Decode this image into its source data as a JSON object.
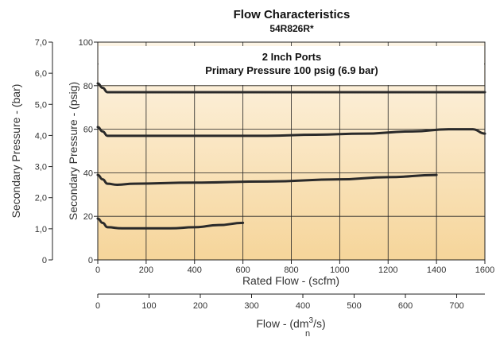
{
  "chart_data": {
    "type": "line",
    "title": "Flow Characteristics",
    "subtitle": "54R826R*",
    "annotation": [
      "2 Inch Ports",
      "Primary Pressure 100 psig (6.9 bar)"
    ],
    "xlabel": "Rated Flow - (scfm)",
    "ylabel": "Secondary Pressure - (psig)",
    "xlim": [
      0,
      1600
    ],
    "ylim": [
      0,
      100
    ],
    "x_ticks": [
      "0",
      "200",
      "400",
      "600",
      "800",
      "1000",
      "1200",
      "1400",
      "1600"
    ],
    "y_ticks": [
      "0",
      "20",
      "40",
      "60",
      "80",
      "100"
    ],
    "secondary_y": {
      "label": "Secondary Pressure - (bar)",
      "lim": [
        0,
        7
      ],
      "ticks": [
        "0",
        "1,0",
        "2,0",
        "3,0",
        "4,0",
        "5,0",
        "6,0",
        "7,0"
      ]
    },
    "secondary_x": {
      "label_main": "Flow - (dm",
      "label_sup": "3",
      "label_end": "/s)",
      "label_sub": "n",
      "lim": [
        0,
        755
      ],
      "ticks": [
        "0",
        "100",
        "200",
        "300",
        "400",
        "500",
        "600",
        "700"
      ]
    },
    "grid": true,
    "colors": {
      "line": "#2a2a2a",
      "band_top": "#fdf5e6",
      "band_bottom": "#f6d59a"
    },
    "series": [
      {
        "x": [
          0,
          20,
          40,
          100,
          400,
          800,
          1200,
          1600
        ],
        "y": [
          81,
          79,
          77,
          77,
          77,
          77,
          77,
          77
        ]
      },
      {
        "x": [
          0,
          20,
          40,
          100,
          400,
          700,
          900,
          1100,
          1300,
          1450,
          1550,
          1600
        ],
        "y": [
          61,
          59,
          57,
          57,
          57,
          57,
          57.5,
          58,
          59,
          60,
          60,
          58
        ]
      },
      {
        "x": [
          0,
          20,
          40,
          80,
          150,
          400,
          700,
          1000,
          1200,
          1400
        ],
        "y": [
          39,
          37,
          35,
          34.5,
          35,
          35.5,
          36,
          37,
          38,
          39
        ]
      },
      {
        "x": [
          0,
          20,
          40,
          100,
          200,
          300,
          400,
          500,
          600
        ],
        "y": [
          19,
          17,
          15,
          14.5,
          14.5,
          14.5,
          15,
          16,
          17
        ]
      }
    ]
  }
}
